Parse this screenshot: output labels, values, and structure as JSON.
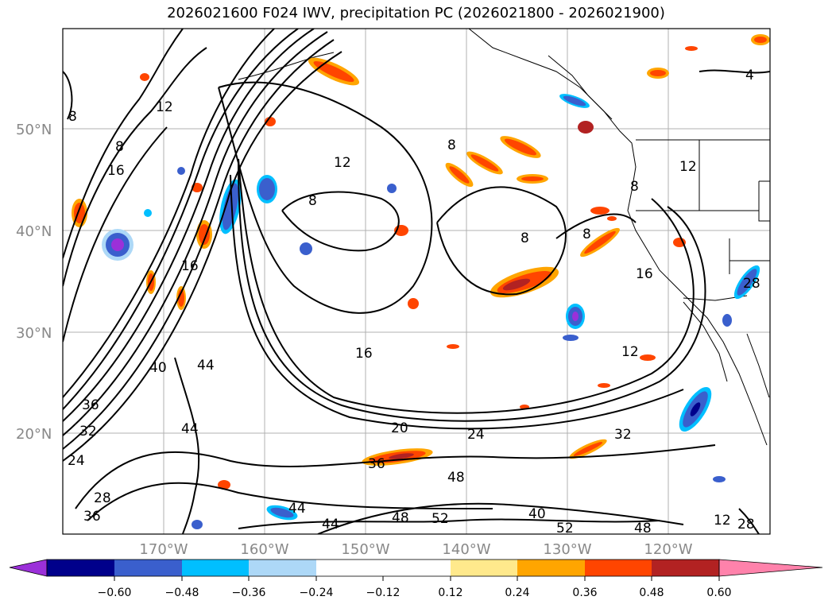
{
  "title": "2026021600 F024 IWV, precipitation PC (2026021800 - 2026021900)",
  "latitude_labels": [
    "50°N",
    "40°N",
    "30°N",
    "20°N"
  ],
  "longitude_labels": [
    "170°W",
    "160°W",
    "150°W",
    "140°W",
    "130°W",
    "120°W"
  ],
  "colorbar": {
    "colors": [
      "#9b30d9",
      "#00008b",
      "#3a5fcd",
      "#00bfff",
      "#add8f7",
      "#ffffff",
      "#ffe98c",
      "#ffa500",
      "#ff4500",
      "#b22222",
      "#ff82ab"
    ],
    "tick_labels": [
      "−0.60",
      "−0.48",
      "−0.36",
      "−0.24",
      "−0.12",
      "0.12",
      "0.24",
      "0.36",
      "0.48",
      "0.60"
    ]
  },
  "contour_labels": [
    "4",
    "8",
    "8",
    "8",
    "8",
    "8",
    "8",
    "12",
    "12",
    "12",
    "12",
    "16",
    "16",
    "16",
    "20",
    "24",
    "24",
    "28",
    "28",
    "32",
    "32",
    "36",
    "36",
    "36",
    "40",
    "40",
    "44",
    "44",
    "44",
    "44",
    "48",
    "48",
    "48",
    "52",
    "52",
    "12",
    "8",
    "16",
    "28"
  ]
}
